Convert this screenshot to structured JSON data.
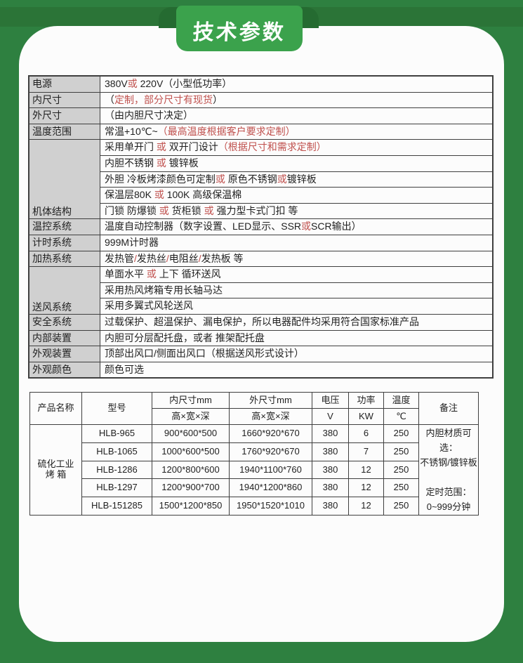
{
  "banner": {
    "title": "技术参数"
  },
  "colors": {
    "frame_green": "#2e8040",
    "band_green": "#2b7437",
    "ribbon_green": "#3ba24c",
    "fold_green": "#256b31",
    "accent_red": "#c0504d",
    "label_grey": "#d0d0d0"
  },
  "spec_table": {
    "rows": [
      {
        "label": "电源",
        "span": 1,
        "value": [
          [
            "380V",
            0
          ],
          [
            "或",
            1
          ],
          [
            " 220V（小型低功率）",
            0
          ]
        ]
      },
      {
        "label": "内尺寸",
        "span": 1,
        "value": [
          [
            "（",
            0
          ],
          [
            "定制，部分尺寸有现货",
            1
          ],
          [
            "）",
            0
          ]
        ]
      },
      {
        "label": "外尺寸",
        "span": 1,
        "value": [
          [
            "（由内胆尺寸决定）",
            0
          ]
        ]
      },
      {
        "label": "温度范围",
        "span": 1,
        "value": [
          [
            "常温+10℃~",
            0
          ],
          [
            "（最高温度根据客户要求定制）",
            1
          ]
        ]
      },
      {
        "label": "机体结构",
        "span": 5,
        "value": [
          [
            "采用单开门 ",
            0
          ],
          [
            "或",
            1
          ],
          [
            " 双开门设计",
            0
          ],
          [
            "（根据尺寸和需求定制）",
            1
          ]
        ]
      },
      {
        "value": [
          [
            "内胆不锈钢 ",
            0
          ],
          [
            "或",
            1
          ],
          [
            " 镀锌板",
            0
          ]
        ]
      },
      {
        "value": [
          [
            "外胆 冷板烤漆颜色可定制",
            0
          ],
          [
            "或",
            1
          ],
          [
            " 原色不锈钢",
            0
          ],
          [
            "或",
            1
          ],
          [
            "镀锌板",
            0
          ]
        ]
      },
      {
        "value": [
          [
            "保温层80K ",
            0
          ],
          [
            "或",
            1
          ],
          [
            " 100K 高级保温棉",
            0
          ]
        ]
      },
      {
        "value": [
          [
            "门锁 防爆锁 ",
            0
          ],
          [
            "或",
            1
          ],
          [
            " 货柜锁 ",
            0
          ],
          [
            "或",
            1
          ],
          [
            " 强力型卡式门扣 等",
            0
          ]
        ]
      },
      {
        "label": "温控系统",
        "span": 1,
        "value": [
          [
            "温度自动控制器（数字设置、LED显示、SSR",
            0
          ],
          [
            "或",
            1
          ],
          [
            "SCR输出）",
            0
          ]
        ]
      },
      {
        "label": "计时系统",
        "span": 1,
        "value": [
          [
            "999M计时器",
            0
          ]
        ]
      },
      {
        "label": "加热系统",
        "span": 1,
        "value": [
          [
            "发热管",
            0
          ],
          [
            "/",
            1
          ],
          [
            "发热丝",
            0
          ],
          [
            "/",
            1
          ],
          [
            "电阻丝",
            0
          ],
          [
            "/",
            1
          ],
          [
            "发热板 等",
            0
          ]
        ]
      },
      {
        "label": "送风系统",
        "span": 3,
        "value": [
          [
            "单面水平 ",
            0
          ],
          [
            "或",
            1
          ],
          [
            " 上下 循环送风",
            0
          ]
        ]
      },
      {
        "value": [
          [
            "采用热风烤箱专用长轴马达",
            0
          ]
        ]
      },
      {
        "value": [
          [
            "采用多翼式风轮送风",
            0
          ]
        ]
      },
      {
        "label": "安全系统",
        "span": 1,
        "value": [
          [
            "过载保护、超温保护、漏电保护，所以电器配件均采用符合国家标准产品",
            0
          ]
        ]
      },
      {
        "label": "内部装置",
        "span": 1,
        "value": [
          [
            "内胆可分层配托盘，或者 推架配托盘",
            0
          ]
        ]
      },
      {
        "label": "外观装置",
        "span": 1,
        "value": [
          [
            "顶部出风口/侧面出风口（根据送风形式设计）",
            0
          ]
        ]
      },
      {
        "label": "外观颜色",
        "span": 1,
        "value": [
          [
            "颜色可选",
            0
          ]
        ]
      }
    ]
  },
  "product_table": {
    "header": {
      "product": "产品名称",
      "model": "型号",
      "inner": "内尺寸mm",
      "outer": "外尺寸mm",
      "dims": "高×宽×深",
      "voltage": "电压",
      "voltage_unit": "V",
      "power": "功率",
      "power_unit": "KW",
      "temp": "温度",
      "temp_unit": "℃",
      "remark": "备注"
    },
    "product_name_lines": [
      "硫化工业",
      "烤 箱"
    ],
    "rows": [
      {
        "model": "HLB-965",
        "inner": "900*600*500",
        "outer": "1660*920*670",
        "v": "380",
        "kw": "6",
        "temp": "250"
      },
      {
        "model": "HLB-1065",
        "inner": "1000*600*500",
        "outer": "1760*920*670",
        "v": "380",
        "kw": "7",
        "temp": "250"
      },
      {
        "model": "HLB-1286",
        "inner": "1200*800*600",
        "outer": "1940*1100*760",
        "v": "380",
        "kw": "12",
        "temp": "250"
      },
      {
        "model": "HLB-1297",
        "inner": "1200*900*700",
        "outer": "1940*1200*860",
        "v": "380",
        "kw": "12",
        "temp": "250"
      },
      {
        "model": "HLB-151285",
        "inner": "1500*1200*850",
        "outer": "1950*1520*1010",
        "v": "380",
        "kw": "12",
        "temp": "250"
      }
    ],
    "remark_lines": [
      "内胆材质可选：",
      "不锈钢/镀锌板",
      "",
      "定时范围：",
      "0~999分钟"
    ]
  }
}
